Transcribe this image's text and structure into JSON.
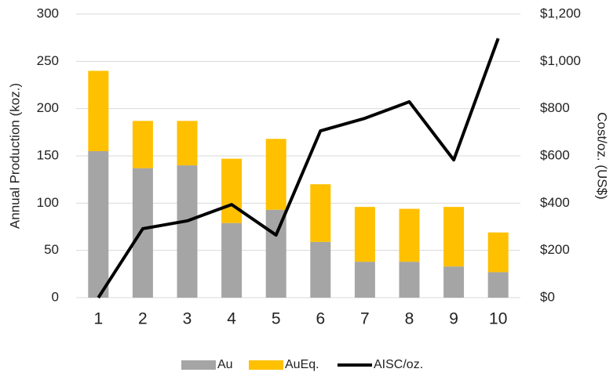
{
  "chart_data": {
    "type": "bar-line",
    "categories": [
      "1",
      "2",
      "3",
      "4",
      "5",
      "6",
      "7",
      "8",
      "9",
      "10"
    ],
    "series": [
      {
        "name": "Au",
        "color": "#a5a5a5",
        "values": [
          155,
          137,
          140,
          79,
          93,
          59,
          38,
          38,
          33,
          27
        ]
      },
      {
        "name": "AuEq.",
        "color": "#ffc000",
        "values": [
          85,
          50,
          47,
          68,
          75,
          61,
          58,
          56,
          63,
          42
        ]
      },
      {
        "name": "AISC/oz.",
        "color": "#000000",
        "axis": "y2",
        "values": [
          0,
          292,
          325,
          394,
          265,
          706,
          759,
          829,
          583,
          1097
        ]
      }
    ],
    "y_label": "Annual Production (koz.)",
    "y2_label": "Cost/oz. (US$)",
    "ylim": [
      0,
      300
    ],
    "yticks": [
      0,
      50,
      100,
      150,
      200,
      250,
      300
    ],
    "y2lim": [
      0,
      1200
    ],
    "y2ticks": [
      {
        "value": 0,
        "label": "$0"
      },
      {
        "value": 200,
        "label": "$200"
      },
      {
        "value": 400,
        "label": "$400"
      },
      {
        "value": 600,
        "label": "$600"
      },
      {
        "value": 800,
        "label": "$800"
      },
      {
        "value": 1000,
        "label": "$1,000"
      },
      {
        "value": 1200,
        "label": "$1,200"
      }
    ],
    "grid": true,
    "legend": "bottom"
  }
}
